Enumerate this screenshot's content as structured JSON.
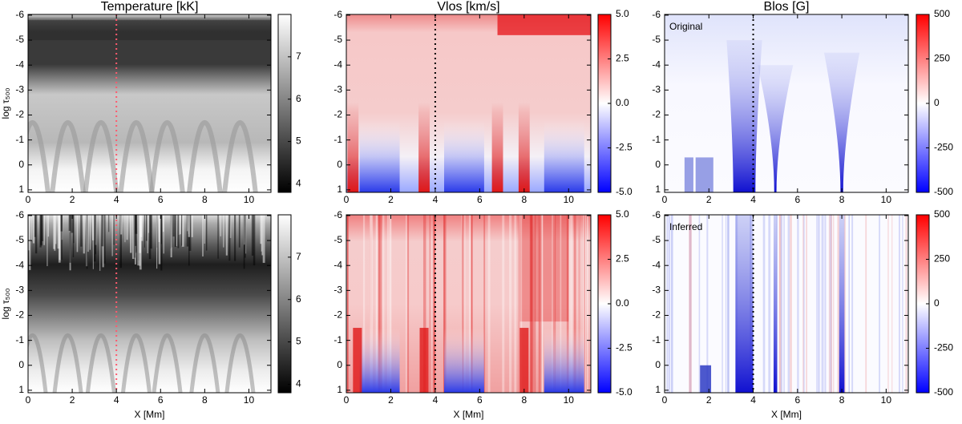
{
  "chart_data": [
    {
      "type": "heatmap",
      "title": "Temperature [kK]",
      "ylabel": "log τ₅₀₀",
      "colormap": "gray",
      "texture": "temperature-original",
      "xlim": [
        0,
        11.0
      ],
      "xticks": [
        0,
        2,
        4,
        6,
        8,
        10
      ],
      "ylim": [
        1.1,
        -6.03
      ],
      "yticks": [
        -6,
        -5,
        -4,
        -3,
        -2,
        -1,
        0,
        1
      ],
      "clim": [
        3.8,
        8.0
      ],
      "cticks": [
        4,
        5,
        6,
        7
      ],
      "vline": 4,
      "vline_color": "#ff5a6e"
    },
    {
      "type": "heatmap",
      "title": "Vlos [km/s]",
      "colormap": "bwr",
      "texture": "velocity-original",
      "xlim": [
        0,
        11.0
      ],
      "xticks": [
        0,
        2,
        4,
        6,
        8,
        10
      ],
      "ylim": [
        1.1,
        -6.03
      ],
      "yticks": [
        -6,
        -5,
        -4,
        -3,
        -2,
        -1,
        0,
        1
      ],
      "clim": [
        -5,
        5
      ],
      "cticks": [
        {
          "value": 5,
          "label": "5.0"
        },
        {
          "value": 2.5,
          "label": "2.5"
        },
        {
          "value": 0,
          "label": "0.0"
        },
        {
          "value": -2.5,
          "label": "-2.5"
        },
        {
          "value": -5,
          "label": "-5.0"
        }
      ],
      "vline": 4,
      "vline_color": "#000000"
    },
    {
      "type": "heatmap",
      "title": "Blos [G]",
      "annotation": "Original",
      "colormap": "bwr",
      "texture": "field-original",
      "xlim": [
        0,
        11.0
      ],
      "xticks": [
        0,
        2,
        4,
        6,
        8,
        10
      ],
      "ylim": [
        1.1,
        -6.03
      ],
      "yticks": [
        -6,
        -5,
        -4,
        -3,
        -2,
        -1,
        0,
        1
      ],
      "clim": [
        -500,
        500
      ],
      "cticks": [
        500,
        250,
        0,
        -250,
        -500
      ],
      "vline": 4,
      "vline_color": "#000000"
    },
    {
      "type": "heatmap",
      "ylabel": "log τ₅₀₀",
      "xlabel": "X [Mm]",
      "colormap": "gray",
      "texture": "temperature-inferred",
      "xlim": [
        0,
        11.0
      ],
      "xticks": [
        0,
        2,
        4,
        6,
        8,
        10
      ],
      "ylim": [
        1.1,
        -6.03
      ],
      "yticks": [
        -6,
        -5,
        -4,
        -3,
        -2,
        -1,
        0,
        1
      ],
      "clim": [
        3.8,
        8.0
      ],
      "cticks": [
        4,
        5,
        6,
        7
      ],
      "vline": 4,
      "vline_color": "#ff5a6e"
    },
    {
      "type": "heatmap",
      "xlabel": "X [Mm]",
      "colormap": "bwr",
      "texture": "velocity-inferred",
      "xlim": [
        0,
        11.0
      ],
      "xticks": [
        0,
        2,
        4,
        6,
        8,
        10
      ],
      "ylim": [
        1.1,
        -6.03
      ],
      "yticks": [
        -6,
        -5,
        -4,
        -3,
        -2,
        -1,
        0,
        1
      ],
      "clim": [
        -5,
        5
      ],
      "cticks": [
        {
          "value": 5,
          "label": "5.0"
        },
        {
          "value": 2.5,
          "label": "2.5"
        },
        {
          "value": 0,
          "label": "0.0"
        },
        {
          "value": -2.5,
          "label": "-2.5"
        },
        {
          "value": -5,
          "label": "-5.0"
        }
      ],
      "vline": 4,
      "vline_color": "#000000"
    },
    {
      "type": "heatmap",
      "xlabel": "X [Mm]",
      "annotation": "Inferred",
      "colormap": "bwr",
      "texture": "field-inferred",
      "xlim": [
        0,
        11.0
      ],
      "xticks": [
        0,
        2,
        4,
        6,
        8,
        10
      ],
      "ylim": [
        1.1,
        -6.03
      ],
      "yticks": [
        -6,
        -5,
        -4,
        -3,
        -2,
        -1,
        0,
        1
      ],
      "clim": [
        -500,
        500
      ],
      "cticks": [
        500,
        250,
        0,
        -250,
        -500
      ],
      "vline": 4,
      "vline_color": "#000000"
    }
  ]
}
